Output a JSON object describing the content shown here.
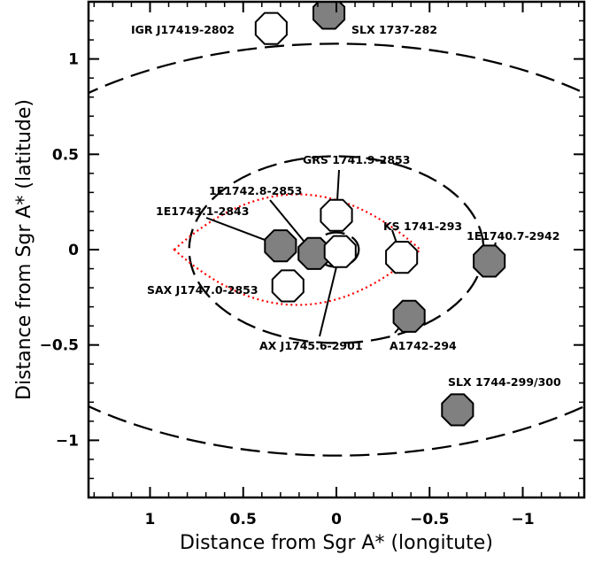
{
  "chart_data": {
    "type": "scatter",
    "xlabel": "Distance from Sgr A* (longitute)",
    "ylabel": "Distance from Sgr A* (latitude)",
    "xlim": [
      1.33,
      -1.33
    ],
    "ylim": [
      -1.3,
      1.3
    ],
    "x_reversed": true,
    "x_ticks": [
      1,
      0.5,
      0,
      -0.5,
      -1
    ],
    "x_tick_labels": [
      "1",
      "0.5",
      "0",
      "−0.5",
      "−1"
    ],
    "y_ticks": [
      1,
      0.5,
      0,
      -0.5,
      -1
    ],
    "y_tick_labels": [
      "1",
      "0.5",
      "0",
      "−0.5",
      "−1"
    ],
    "grid": false,
    "dashed_ellipses": [
      {
        "center": [
          0.0,
          0.0
        ],
        "semi_axes": [
          0.12,
          0.09
        ]
      },
      {
        "center": [
          0.0,
          0.0
        ],
        "semi_axes": [
          0.79,
          0.49
        ]
      },
      {
        "center": [
          0.0,
          0.0
        ],
        "semi_axes": [
          2.05,
          1.08
        ]
      }
    ],
    "dotted_lens": {
      "color": "#ff0000",
      "apex_x": [
        0.87,
        -0.45
      ],
      "half_height": 0.29
    },
    "sources": [
      {
        "name": "IGR J17419-2802",
        "l": 0.35,
        "b": 1.16,
        "filled": false
      },
      {
        "name": "SLX 1737-282",
        "l": 0.04,
        "b": 1.24,
        "filled": true
      },
      {
        "name": "GRS 1741.9-2853",
        "l": 0.0,
        "b": 0.18,
        "filled": false
      },
      {
        "name": "1E1742.8-2853",
        "l": 0.12,
        "b": -0.02,
        "filled": true
      },
      {
        "name": "1E1743.1-2843",
        "l": 0.3,
        "b": 0.02,
        "filled": true
      },
      {
        "name": "KS 1741-293",
        "l": -0.35,
        "b": -0.04,
        "filled": false
      },
      {
        "name": "1E1740.7-2942",
        "l": -0.82,
        "b": -0.06,
        "filled": true
      },
      {
        "name": "SAX J1747.0-2853",
        "l": 0.26,
        "b": -0.19,
        "filled": false
      },
      {
        "name": "AX J1745.6-2901",
        "l": -0.02,
        "b": -0.01,
        "filled": false
      },
      {
        "name": "A1742-294",
        "l": -0.39,
        "b": -0.35,
        "filled": true
      },
      {
        "name": "SLX 1744-299/300",
        "l": -0.65,
        "b": -0.84,
        "filled": true
      }
    ],
    "marker_colors": {
      "filled": "#808080",
      "open": "#ffffff",
      "edge": "#000000"
    }
  }
}
